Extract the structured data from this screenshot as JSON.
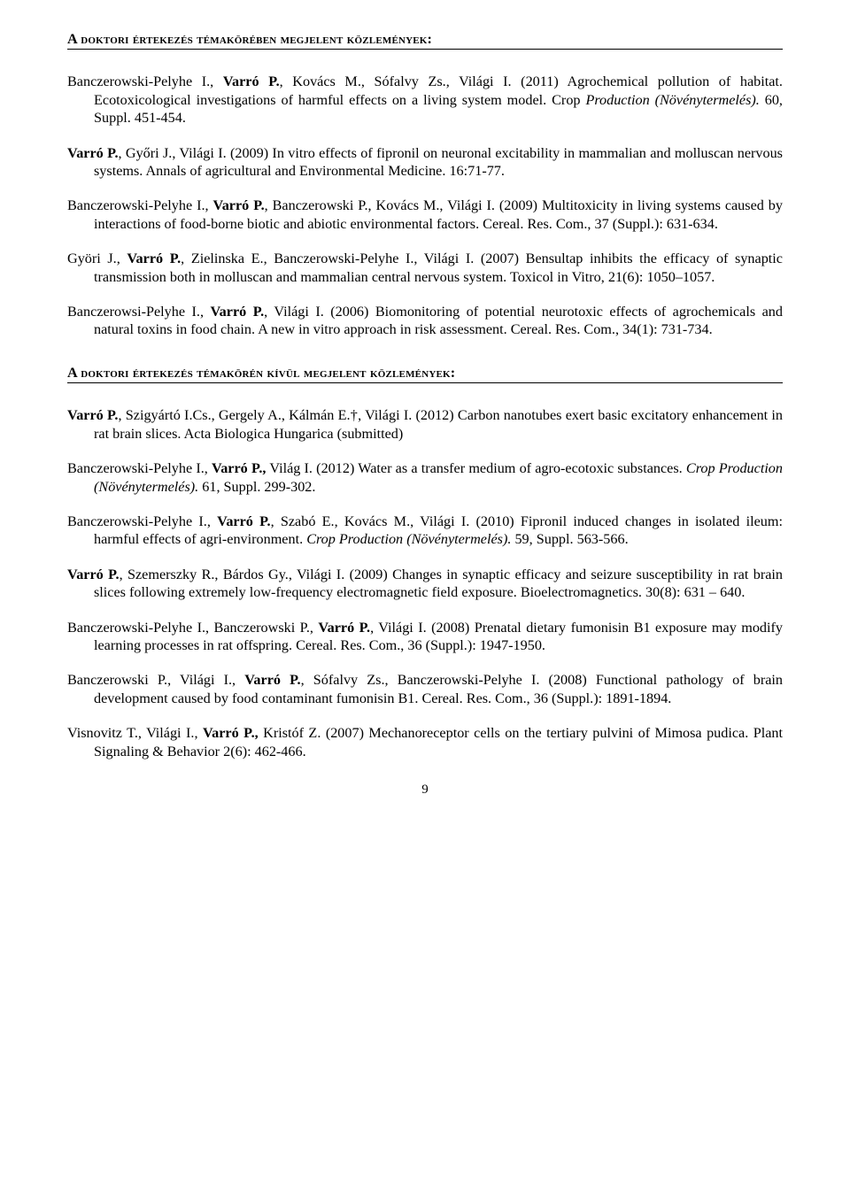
{
  "section1_heading": "A doktori értekezés témakörében megjelent közlemények:",
  "section2_heading": "A doktori értekezés témakörén kívül megjelent közlemények:",
  "page_number": "9",
  "pubs1": [
    [
      {
        "t": "Banczerowski-Pelyhe I., "
      },
      {
        "t": "Varró P.",
        "b": true
      },
      {
        "t": ", Kovács M., Sófalvy Zs., Világi I. (2011) Agrochemical pollution of habitat. Ecotoxicological investigations of harmful effects on a living system model. Crop "
      },
      {
        "t": "Production (Növénytermelés).",
        "i": true
      },
      {
        "t": " 60, Suppl. 451-454."
      }
    ],
    [
      {
        "t": "Varró P.",
        "b": true
      },
      {
        "t": ", Győri J., Világi I. (2009) In vitro effects of fipronil on neuronal excitability in mammalian and molluscan nervous systems. Annals of agricultural and Environmental Medicine. 16:71-77."
      }
    ],
    [
      {
        "t": "Banczerowski-Pelyhe I., "
      },
      {
        "t": "Varró P.",
        "b": true
      },
      {
        "t": ", Banczerowski P., Kovács M., Világi I. (2009) Multitoxicity in living systems caused by interactions of food-borne biotic and abiotic environmental factors. Cereal. Res. Com., 37 (Suppl.): 631-634."
      }
    ],
    [
      {
        "t": "Györi J., "
      },
      {
        "t": "Varró P.",
        "b": true
      },
      {
        "t": ", Zielinska E., Banczerowski-Pelyhe I., Világi I. (2007) Bensultap inhibits the efficacy of synaptic transmission both in molluscan and mammalian central nervous system. Toxicol in Vitro, 21(6): 1050–1057."
      }
    ],
    [
      {
        "t": "Banczerowsi-Pelyhe I., "
      },
      {
        "t": "Varró P.",
        "b": true
      },
      {
        "t": ", Világi I. (2006) Biomonitoring of potential neurotoxic effects of agrochemicals and natural toxins in food chain. A new in vitro approach in risk assessment. Cereal. Res. Com., 34(1): 731-734."
      }
    ]
  ],
  "pubs2": [
    [
      {
        "t": "Varró P.",
        "b": true
      },
      {
        "t": ", Szigyártó I.Cs., Gergely A., Kálmán E.†, Világi I. (2012) Carbon nanotubes exert basic excitatory enhancement in rat brain slices. Acta Biologica Hungarica (submitted)"
      }
    ],
    [
      {
        "t": "Banczerowski-Pelyhe I., "
      },
      {
        "t": "Varró P.,",
        "b": true
      },
      {
        "t": " Világ I. (2012) Water as a transfer medium of agro-ecotoxic substances. "
      },
      {
        "t": "Crop Production (Növénytermelés).",
        "i": true
      },
      {
        "t": " 61, Suppl.  299-302."
      }
    ],
    [
      {
        "t": "Banczerowski-Pelyhe I., "
      },
      {
        "t": "Varró P.",
        "b": true
      },
      {
        "t": ", Szabó E., Kovács M., Világi I. (2010) Fipronil induced changes in isolated ileum: harmful effects of agri-environment. "
      },
      {
        "t": "Crop Production (Növénytermelés).",
        "i": true
      },
      {
        "t": " 59, Suppl. 563-566."
      }
    ],
    [
      {
        "t": "Varró P.",
        "b": true
      },
      {
        "t": ", Szemerszky R., Bárdos Gy., Világi I. (2009) Changes in synaptic efficacy and seizure susceptibility in rat brain slices following extremely low-frequency electromagnetic field exposure. Bioelectromagnetics. 30(8): 631 – 640."
      }
    ],
    [
      {
        "t": "Banczerowski-Pelyhe I., Banczerowski P., "
      },
      {
        "t": "Varró P.",
        "b": true
      },
      {
        "t": ", Világi I. (2008) Prenatal dietary fumonisin B1 exposure may modify learning processes in rat offspring. Cereal. Res. Com., 36 (Suppl.): 1947-1950."
      }
    ],
    [
      {
        "t": "Banczerowski P., Világi I., "
      },
      {
        "t": "Varró P.",
        "b": true
      },
      {
        "t": ", Sófalvy Zs., Banczerowski-Pelyhe I. (2008) Functional pathology of brain development caused by food contaminant fumonisin B1.  Cereal. Res. Com., 36 (Suppl.): 1891-1894."
      }
    ],
    [
      {
        "t": "Visnovitz T., Világi I., "
      },
      {
        "t": "Varró P.,",
        "b": true
      },
      {
        "t": " Kristóf Z. (2007) Mechanoreceptor cells on the tertiary pulvini of Mimosa pudica. Plant Signaling & Behavior 2(6): 462-466."
      }
    ]
  ]
}
